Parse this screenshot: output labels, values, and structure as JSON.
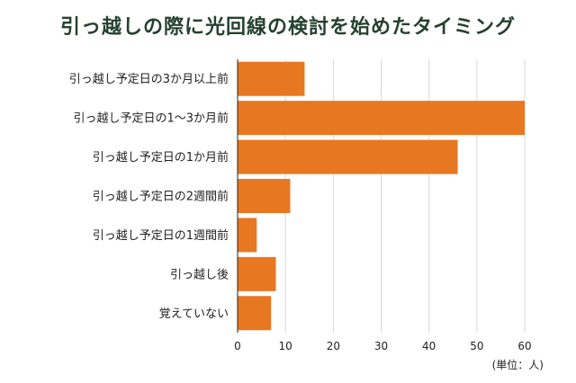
{
  "chart_data": {
    "type": "bar",
    "orientation": "horizontal",
    "title": "引っ越しの際に光回線の検討を始めたタイミング",
    "categories": [
      "引っ越し予定日の3か月以上前",
      "引っ越し予定日の1〜3か月前",
      "引っ越し予定日の1か月前",
      "引っ越し予定日の2週間前",
      "引っ越し予定日の1週間前",
      "引っ越し後",
      "覚えていない"
    ],
    "values": [
      14,
      60,
      46,
      11,
      4,
      8,
      7
    ],
    "xlim": [
      0,
      60
    ],
    "xticks": [
      "0",
      "10",
      "20",
      "30",
      "40",
      "50",
      "60"
    ],
    "unit": "(単位：人)",
    "grid": "vertical",
    "bar_color": "#e87722",
    "title_color": "#25412f"
  }
}
